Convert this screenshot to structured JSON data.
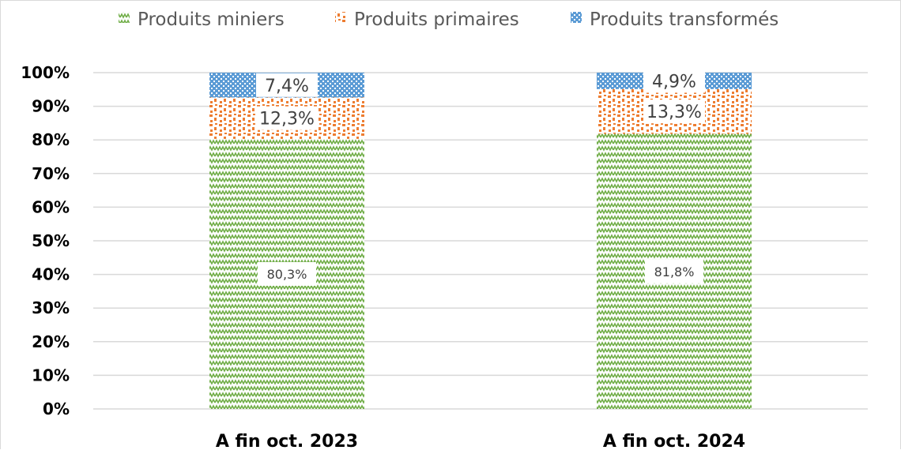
{
  "chart_data": {
    "type": "bar",
    "stacked": true,
    "percent_stacked": true,
    "categories": [
      "A fin oct. 2023",
      "A fin oct. 2024"
    ],
    "series": [
      {
        "name": "Produits miniers",
        "values": [
          80.3,
          81.8
        ],
        "labels": [
          "80,3%",
          "81,8%"
        ],
        "color": "#70ad47",
        "pattern": "zigzag"
      },
      {
        "name": "Produits primaires",
        "values": [
          12.3,
          13.3
        ],
        "labels": [
          "12,3%",
          "13,3%"
        ],
        "color": "#ed7d31",
        "pattern": "confetti"
      },
      {
        "name": "Produits transformés",
        "values": [
          7.4,
          4.9
        ],
        "labels": [
          "7,4%",
          "4,9%"
        ],
        "color": "#5b9bd5",
        "pattern": "dots"
      }
    ],
    "ylim": [
      0,
      100
    ],
    "yticks": [
      "0%",
      "10%",
      "20%",
      "30%",
      "40%",
      "50%",
      "60%",
      "70%",
      "80%",
      "90%",
      "100%"
    ],
    "grid": true,
    "legend": "top-center",
    "title": "",
    "xlabel": "",
    "ylabel": ""
  }
}
